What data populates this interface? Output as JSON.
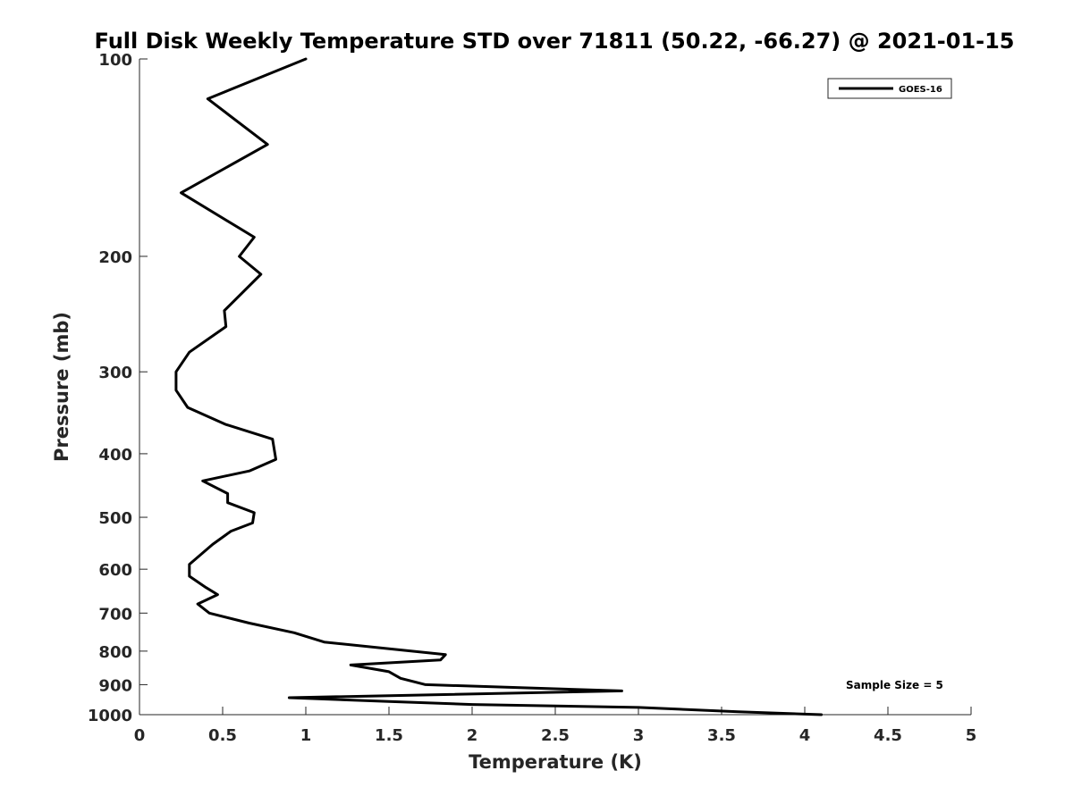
{
  "chart_data": {
    "type": "line",
    "title": "Full Disk Weekly Temperature STD over 71811 (50.22, -66.27) @ 2021-01-15",
    "xlabel": "Temperature (K)",
    "ylabel": "Pressure (mb)",
    "xlim": [
      0,
      5
    ],
    "ylim": [
      100,
      1000
    ],
    "yscale": "log",
    "y_reversed": true,
    "grid": false,
    "legend_position": "top-right",
    "x_ticks": [
      "0",
      "0.5",
      "1",
      "1.5",
      "2",
      "2.5",
      "3",
      "3.5",
      "4",
      "4.5",
      "5"
    ],
    "y_ticks": [
      "100",
      "200",
      "300",
      "400",
      "500",
      "600",
      "700",
      "800",
      "900",
      "1000"
    ],
    "annotation": "Sample Size = 5",
    "line_color": "#000000",
    "series": [
      {
        "name": "GOES-16",
        "points": [
          [
            1.0,
            100
          ],
          [
            0.41,
            115
          ],
          [
            0.77,
            135
          ],
          [
            0.25,
            160
          ],
          [
            0.69,
            187
          ],
          [
            0.6,
            200
          ],
          [
            0.73,
            213
          ],
          [
            0.51,
            242
          ],
          [
            0.52,
            256
          ],
          [
            0.3,
            280
          ],
          [
            0.22,
            300
          ],
          [
            0.22,
            320
          ],
          [
            0.29,
            340
          ],
          [
            0.52,
            361
          ],
          [
            0.8,
            380
          ],
          [
            0.82,
            408
          ],
          [
            0.66,
            425
          ],
          [
            0.38,
            440
          ],
          [
            0.53,
            460
          ],
          [
            0.53,
            475
          ],
          [
            0.69,
            492
          ],
          [
            0.68,
            510
          ],
          [
            0.55,
            525
          ],
          [
            0.44,
            550
          ],
          [
            0.3,
            590
          ],
          [
            0.3,
            615
          ],
          [
            0.4,
            640
          ],
          [
            0.47,
            656
          ],
          [
            0.35,
            678
          ],
          [
            0.42,
            700
          ],
          [
            0.66,
            725
          ],
          [
            0.93,
            750
          ],
          [
            1.11,
            775
          ],
          [
            1.84,
            810
          ],
          [
            1.81,
            825
          ],
          [
            1.27,
            840
          ],
          [
            1.5,
            860
          ],
          [
            1.57,
            880
          ],
          [
            1.72,
            900
          ],
          [
            2.9,
            920
          ],
          [
            0.9,
            942
          ],
          [
            1.5,
            955
          ],
          [
            2.0,
            965
          ],
          [
            3.0,
            975
          ],
          [
            3.6,
            990
          ],
          [
            4.1,
            1000
          ]
        ]
      }
    ]
  }
}
